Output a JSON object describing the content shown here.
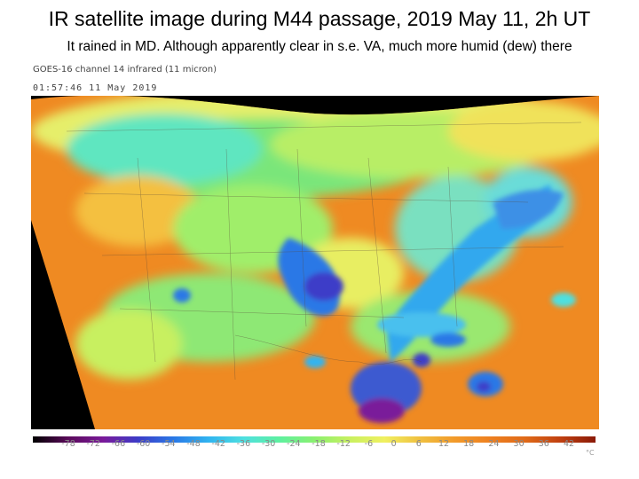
{
  "slide": {
    "title": "IR satellite image during M44 passage, 2019 May 11, 2h UT",
    "subtitle": "It rained in MD. Although apparently clear in s.e. VA, much more humid (dew) there"
  },
  "satellite": {
    "caption": "GOES-16 channel 14 infrared (11 micron)",
    "timestamp": "01:57:46 11 May 2019"
  },
  "colorbar": {
    "ticks": [
      "-78",
      "-72",
      "-66",
      "-60",
      "-54",
      "-48",
      "-42",
      "-36",
      "-30",
      "-24",
      "-18",
      "-12",
      "-6",
      "0",
      "6",
      "12",
      "18",
      "24",
      "30",
      "36",
      "42"
    ],
    "unit": "°C",
    "colors": [
      "#000000",
      "#5a0a5a",
      "#7a1a9a",
      "#3c3cc8",
      "#2a78e6",
      "#30b4f0",
      "#4ee0e0",
      "#5ef0a0",
      "#8af070",
      "#c8f060",
      "#f0f060",
      "#f0c040",
      "#f29a2a",
      "#ee8020",
      "#e06a18",
      "#c04010",
      "#8a1a08"
    ]
  }
}
